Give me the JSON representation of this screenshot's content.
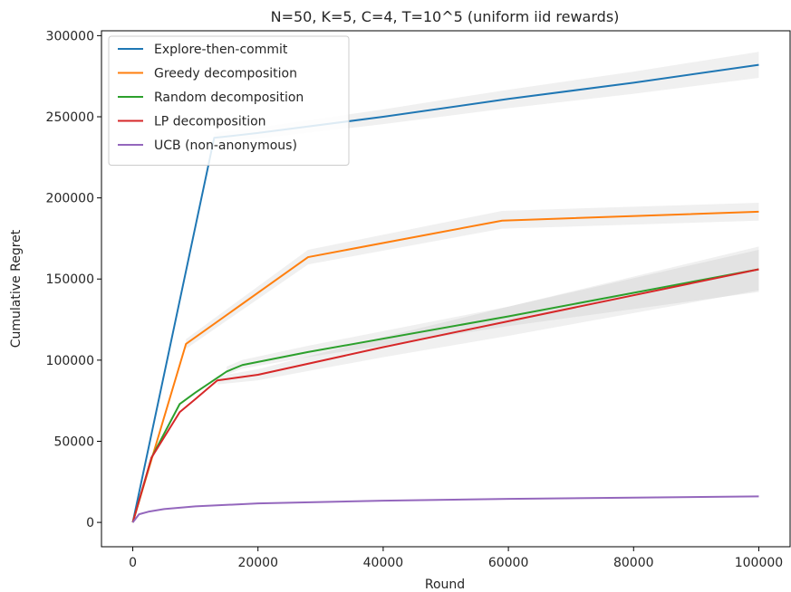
{
  "chart_data": {
    "type": "line",
    "title": "N=50, K=5, C=4, T=10^5 (uniform iid rewards)",
    "xlabel": "Round",
    "ylabel": "Cumulative Regret",
    "xlim": [
      -5000,
      105000
    ],
    "ylim": [
      -15000,
      303000
    ],
    "xticks": [
      0,
      20000,
      40000,
      60000,
      80000,
      100000
    ],
    "yticks": [
      0,
      50000,
      100000,
      150000,
      200000,
      250000,
      300000
    ],
    "grid": false,
    "legend_position": "top-left",
    "series": [
      {
        "name": "Explore-then-commit",
        "color": "#1f77b4",
        "x": [
          0,
          13000,
          20000,
          40000,
          60000,
          80000,
          100000
        ],
        "y": [
          0,
          237000,
          240000,
          250000,
          261000,
          271000,
          282000
        ],
        "band": [
          {
            "x": 13000,
            "lo": 234000,
            "hi": 240000
          },
          {
            "x": 100000,
            "lo": 274000,
            "hi": 290000
          }
        ]
      },
      {
        "name": "Greedy decomposition",
        "color": "#ff7f0e",
        "x": [
          0,
          8500,
          28000,
          59000,
          100000
        ],
        "y": [
          0,
          110000,
          163500,
          186000,
          191500
        ],
        "band": [
          {
            "x": 8500,
            "lo": 107000,
            "hi": 113000
          },
          {
            "x": 28000,
            "lo": 159000,
            "hi": 168000
          },
          {
            "x": 59000,
            "lo": 181000,
            "hi": 192000
          },
          {
            "x": 100000,
            "lo": 186000,
            "hi": 197000
          }
        ]
      },
      {
        "name": "Random decomposition",
        "color": "#2ca02c",
        "x": [
          0,
          3000,
          7500,
          10000,
          15000,
          17500,
          28000,
          60000,
          100000
        ],
        "y": [
          0,
          40000,
          73000,
          80000,
          93000,
          97000,
          105000,
          127000,
          156000
        ],
        "band": [
          {
            "x": 15000,
            "lo": 91000,
            "hi": 96000
          },
          {
            "x": 60000,
            "lo": 121000,
            "hi": 133000
          },
          {
            "x": 100000,
            "lo": 142000,
            "hi": 170000
          }
        ]
      },
      {
        "name": "LP decomposition",
        "color": "#d62728",
        "x": [
          0,
          3000,
          7500,
          10000,
          13500,
          20000,
          40000,
          60000,
          80000,
          100000
        ],
        "y": [
          0,
          40000,
          68000,
          76000,
          87500,
          91000,
          108000,
          124000,
          140000,
          156000
        ],
        "band": [
          {
            "x": 13500,
            "lo": 85000,
            "hi": 90000
          },
          {
            "x": 60000,
            "lo": 115000,
            "hi": 133000
          },
          {
            "x": 100000,
            "lo": 143000,
            "hi": 168000
          }
        ]
      },
      {
        "name": "UCB (non-anonymous)",
        "color": "#9467bd",
        "x": [
          0,
          1000,
          2500,
          5000,
          10000,
          20000,
          40000,
          60000,
          80000,
          100000
        ],
        "y": [
          0,
          5000,
          6600,
          8200,
          9900,
          11700,
          13400,
          14500,
          15300,
          16000
        ]
      }
    ]
  }
}
